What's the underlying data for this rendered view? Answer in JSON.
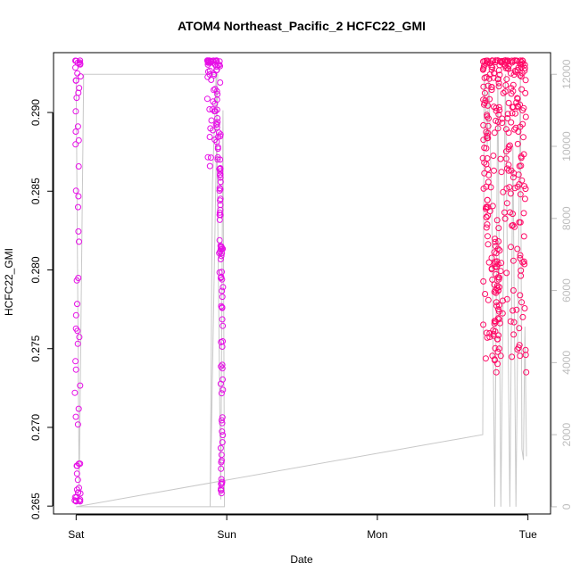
{
  "chart_data": {
    "type": "scatter",
    "title": "ATOM4 Northeast_Pacific_2 HCFC22_GMI",
    "xlabel": "Date",
    "ylabel": "HCFC22_GMI",
    "x_ticks": [
      "Sat",
      "Sun",
      "Mon",
      "Tue"
    ],
    "x_tick_days": [
      0,
      1,
      2,
      3
    ],
    "xlim_days": [
      -0.15,
      3.15
    ],
    "ylim": [
      0.2645,
      0.2938
    ],
    "y_ticks": [
      0.265,
      0.27,
      0.275,
      0.28,
      0.285,
      0.29
    ],
    "y_tick_labels": [
      "0.265",
      "0.270",
      "0.275",
      "0.280",
      "0.285",
      "0.290"
    ],
    "y2lim": [
      -200,
      12600
    ],
    "y2_ticks": [
      0,
      2000,
      4000,
      6000,
      8000,
      10000,
      12000
    ],
    "y2_tick_labels": [
      "0",
      "2000",
      "4000",
      "6000",
      "8000",
      "10000",
      "12000"
    ],
    "colors": {
      "early": "#e60fe6",
      "late": "#ff0a66",
      "altitude": "#c8c8c8"
    },
    "series": [
      {
        "kind": "points",
        "segments": [
          {
            "x0": -0.01,
            "x1": 0.03,
            "ymin": 0.2653,
            "ymax": 0.2933,
            "n": 60,
            "profile": "dense-ends"
          },
          {
            "x0": 0.87,
            "x1": 0.96,
            "ymin": 0.2865,
            "ymax": 0.2933,
            "n": 70,
            "profile": "top"
          },
          {
            "x0": 0.95,
            "x1": 0.96,
            "ymin": 0.2795,
            "ymax": 0.2875,
            "n": 25,
            "profile": "uniform"
          },
          {
            "x0": 0.96,
            "x1": 0.975,
            "ymin": 0.2658,
            "ymax": 0.2815,
            "n": 50,
            "profile": "dense-ends"
          },
          {
            "x0": 2.7,
            "x1": 2.99,
            "ymin": 0.2735,
            "ymax": 0.2933,
            "n": 260,
            "profile": "top"
          },
          {
            "x0": 2.72,
            "x1": 2.74,
            "ymin": 0.2815,
            "ymax": 0.29,
            "n": 25,
            "profile": "uniform"
          },
          {
            "x0": 2.77,
            "x1": 2.81,
            "ymin": 0.2735,
            "ymax": 0.282,
            "n": 45,
            "profile": "uniform"
          }
        ]
      },
      {
        "kind": "altitude-line",
        "points": [
          [
            0.0,
            12000
          ],
          [
            0.02,
            500
          ],
          [
            0.05,
            12000
          ],
          [
            0.9,
            12000
          ],
          [
            0.94,
            12000
          ],
          [
            0.89,
            0
          ],
          [
            0.905,
            9000
          ],
          [
            0.93,
            12000
          ],
          [
            0.96,
            200
          ],
          [
            0.975,
            11000
          ],
          [
            0.985,
            0
          ],
          [
            0.0,
            0
          ],
          [
            2.7,
            2000
          ],
          [
            2.71,
            12000
          ],
          [
            2.73,
            10000
          ],
          [
            2.74,
            12000
          ],
          [
            2.76,
            8000
          ],
          [
            2.78,
            0
          ],
          [
            2.8,
            12000
          ],
          [
            2.82,
            0
          ],
          [
            2.85,
            12000
          ],
          [
            2.88,
            0
          ],
          [
            2.9,
            10000
          ],
          [
            2.92,
            0
          ],
          [
            2.95,
            12000
          ],
          [
            2.96,
            1600
          ],
          [
            2.97,
            1300
          ],
          [
            2.98,
            5000
          ],
          [
            2.99,
            1400
          ]
        ]
      }
    ]
  }
}
